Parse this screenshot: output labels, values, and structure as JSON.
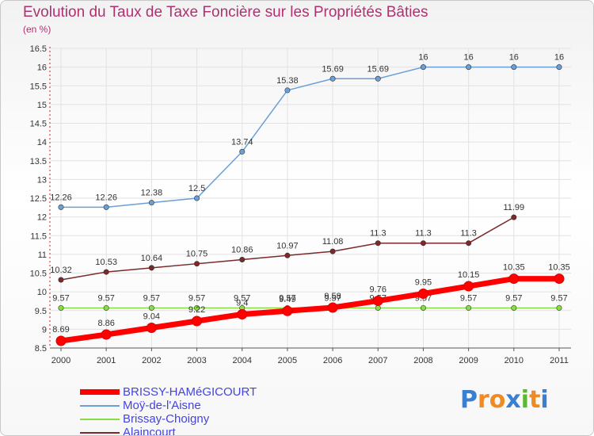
{
  "chart_data": {
    "type": "line",
    "title": "Evolution du Taux de Taxe Foncière sur les Propriétés Bâties",
    "ylabel": "(en %)",
    "xlabel": "",
    "categories": [
      "2000",
      "2001",
      "2002",
      "2003",
      "2004",
      "2005",
      "2006",
      "2007",
      "2008",
      "2009",
      "2010",
      "2011"
    ],
    "ylim": [
      8.5,
      16.5
    ],
    "yticks": [
      "8.5",
      "9",
      "9.5",
      "10",
      "10.5",
      "11",
      "11.5",
      "12",
      "12.5",
      "13",
      "13.5",
      "14",
      "14.5",
      "15",
      "15.5",
      "16",
      "16.5"
    ],
    "series": [
      {
        "name": "BRISSY-HAMéGICOURT",
        "color": "#ff0000",
        "values": [
          8.69,
          8.86,
          9.04,
          9.22,
          9.4,
          9.49,
          9.58,
          9.76,
          9.95,
          10.15,
          10.35,
          10.35
        ],
        "labels": [
          "8.69",
          "8.86",
          "9.04",
          "9.22",
          "9.4",
          "9.49",
          "9.58",
          "9.76",
          "9.95",
          "10.15",
          "10.35",
          "10.35"
        ]
      },
      {
        "name": "Moÿ-de-l'Aisne",
        "color": "#6a9fd8",
        "values": [
          12.26,
          12.26,
          12.38,
          12.5,
          13.74,
          15.38,
          15.69,
          15.69,
          16,
          16,
          16,
          16
        ],
        "labels": [
          "12.26",
          "12.26",
          "12.38",
          "12.5",
          "13.74",
          "15.38",
          "15.69",
          "15.69",
          "16",
          "16",
          "16",
          "16"
        ]
      },
      {
        "name": "Brissay-Choigny",
        "color": "#88dd44",
        "values": [
          9.57,
          9.57,
          9.57,
          9.57,
          9.57,
          9.57,
          9.57,
          9.57,
          9.57,
          9.57,
          9.57,
          9.57
        ],
        "labels": [
          "9.57",
          "9.57",
          "9.57",
          "9.57",
          "9.57",
          "9.57",
          "9.57",
          "9.57",
          "9.57",
          "9.57",
          "9.57",
          "9.57"
        ]
      },
      {
        "name": "Alaincourt",
        "color": "#7a2a2a",
        "values": [
          10.32,
          10.53,
          10.64,
          10.75,
          10.86,
          10.97,
          11.08,
          11.3,
          11.3,
          11.3,
          11.99,
          null
        ],
        "labels": [
          "10.32",
          "10.53",
          "10.64",
          "10.75",
          "10.86",
          "10.97",
          "11.08",
          "11.3",
          "11.3",
          "11.3",
          "11.99",
          ""
        ]
      }
    ]
  },
  "logo": {
    "text": "Proxiti",
    "colors": [
      "#3a7fd0",
      "#f08a24",
      "#f08a24",
      "#3a7fd0",
      "#5cb82e",
      "#f08a24",
      "#3a7fd0"
    ]
  }
}
